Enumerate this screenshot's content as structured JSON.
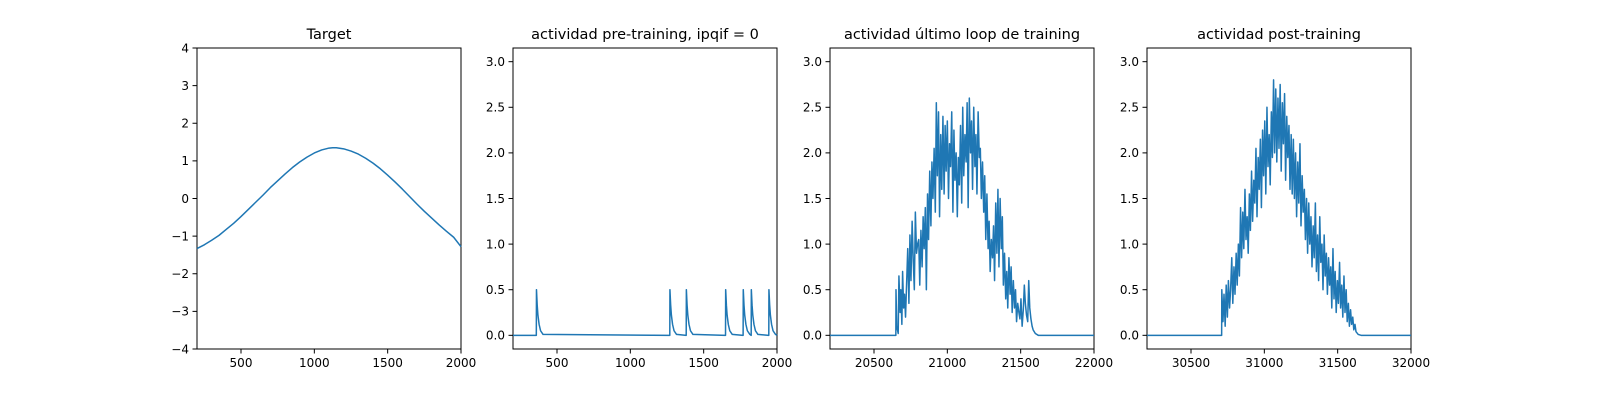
{
  "chart_data": [
    {
      "type": "line",
      "title": "Target",
      "xlabel": "",
      "ylabel": "",
      "xlim": [
        200,
        2000
      ],
      "ylim": [
        -4,
        4
      ],
      "xticks": [
        500,
        1000,
        1500,
        2000
      ],
      "yticks": [
        -4,
        -3,
        -2,
        -1,
        0,
        1,
        2,
        3,
        4
      ],
      "grid": false,
      "series": [
        {
          "color": "#1f77b4",
          "x": [
            200,
            250,
            300,
            350,
            400,
            450,
            500,
            550,
            600,
            650,
            700,
            750,
            800,
            850,
            900,
            950,
            1000,
            1050,
            1100,
            1125,
            1150,
            1200,
            1250,
            1300,
            1350,
            1400,
            1450,
            1500,
            1550,
            1600,
            1650,
            1700,
            1750,
            1800,
            1850,
            1900,
            1950,
            2000
          ],
          "y": [
            -1.33,
            -1.23,
            -1.11,
            -0.98,
            -0.82,
            -0.66,
            -0.48,
            -0.29,
            -0.1,
            0.09,
            0.29,
            0.47,
            0.65,
            0.82,
            0.97,
            1.1,
            1.21,
            1.29,
            1.34,
            1.35,
            1.35,
            1.32,
            1.26,
            1.18,
            1.07,
            0.94,
            0.79,
            0.62,
            0.44,
            0.25,
            0.05,
            -0.15,
            -0.34,
            -0.52,
            -0.7,
            -0.87,
            -1.03,
            -1.28
          ]
        }
      ]
    },
    {
      "type": "line",
      "title": "actividad pre-training, ipqif = 0",
      "xlabel": "",
      "ylabel": "",
      "xlim": [
        200,
        2000
      ],
      "ylim": [
        -0.15,
        3.15
      ],
      "xticks": [
        500,
        1000,
        1500,
        2000
      ],
      "yticks": [
        0.0,
        0.5,
        1.0,
        1.5,
        2.0,
        2.5,
        3.0
      ],
      "grid": false,
      "series": [
        {
          "color": "#1f77b4",
          "x": [
            200,
            359,
            360,
            365,
            370,
            378,
            388,
            405,
            1269,
            1270,
            1275,
            1280,
            1288,
            1298,
            1315,
            1381,
            1382,
            1387,
            1392,
            1400,
            1410,
            1427,
            1649,
            1650,
            1655,
            1660,
            1668,
            1678,
            1695,
            1769,
            1770,
            1775,
            1780,
            1788,
            1798,
            1815,
            1824,
            1825,
            1830,
            1835,
            1843,
            1853,
            1870,
            1944,
            1945,
            1950,
            1955,
            1963,
            1973,
            1990,
            2000
          ],
          "y": [
            0,
            0,
            0.5,
            0.33,
            0.22,
            0.12,
            0.05,
            0.01,
            0,
            0.5,
            0.33,
            0.22,
            0.12,
            0.05,
            0.01,
            0,
            0.5,
            0.33,
            0.22,
            0.12,
            0.05,
            0.01,
            0,
            0.5,
            0.33,
            0.22,
            0.12,
            0.05,
            0.01,
            0,
            0.5,
            0.33,
            0.22,
            0.12,
            0.05,
            0.01,
            0,
            0.5,
            0.33,
            0.22,
            0.12,
            0.05,
            0.01,
            0,
            0.5,
            0.33,
            0.22,
            0.12,
            0.05,
            0.01,
            0
          ]
        }
      ]
    },
    {
      "type": "line",
      "title": "actividad último loop de training",
      "xlabel": "",
      "ylabel": "",
      "xlim": [
        20200,
        22000
      ],
      "ylim": [
        -0.15,
        3.15
      ],
      "xticks": [
        20500,
        21000,
        21500,
        22000
      ],
      "yticks": [
        0.0,
        0.5,
        1.0,
        1.5,
        2.0,
        2.5,
        3.0
      ],
      "grid": false,
      "series": [
        {
          "color": "#1f77b4",
          "x": [
            20200,
            20649,
            20650,
            20655,
            20665,
            20670,
            20678,
            20683,
            20690,
            20695,
            20702,
            20708,
            20715,
            20722,
            20730,
            20738,
            20745,
            20752,
            20760,
            20768,
            20775,
            20782,
            20790,
            20797,
            20805,
            20812,
            20820,
            20828,
            20835,
            20842,
            20850,
            20857,
            20865,
            20872,
            20880,
            20888,
            20895,
            20902,
            20910,
            20918,
            20925,
            20932,
            20940,
            20947,
            20955,
            20962,
            20970,
            20978,
            20985,
            20992,
            21000,
            21008,
            21015,
            21022,
            21030,
            21038,
            21045,
            21052,
            21060,
            21068,
            21075,
            21082,
            21090,
            21098,
            21105,
            21112,
            21120,
            21128,
            21135,
            21142,
            21150,
            21158,
            21165,
            21172,
            21180,
            21188,
            21195,
            21202,
            21210,
            21218,
            21225,
            21232,
            21240,
            21248,
            21255,
            21262,
            21270,
            21278,
            21285,
            21292,
            21300,
            21308,
            21315,
            21322,
            21330,
            21338,
            21345,
            21352,
            21360,
            21368,
            21375,
            21382,
            21390,
            21398,
            21405,
            21412,
            21420,
            21428,
            21435,
            21442,
            21450,
            21458,
            21465,
            21472,
            21480,
            21488,
            21495,
            21502,
            21510,
            21518,
            21525,
            21532,
            21540,
            21548,
            21555,
            21562,
            21570,
            21578,
            21585,
            21600,
            21620,
            22000
          ],
          "y": [
            0,
            0,
            0.5,
            0.1,
            0.02,
            0.65,
            0.25,
            0.5,
            0.12,
            0.7,
            0.3,
            0.45,
            0.2,
            0.55,
            0.95,
            0.35,
            1.1,
            0.6,
            1.25,
            0.8,
            0.5,
            1.35,
            0.9,
            1.0,
            1.05,
            0.55,
            1.15,
            0.75,
            1.3,
            0.95,
            1.4,
            0.5,
            1.55,
            1.05,
            1.8,
            1.2,
            1.9,
            1.5,
            2.05,
            1.35,
            2.55,
            1.75,
            2.45,
            1.3,
            2.2,
            1.6,
            2.4,
            1.55,
            2.3,
            1.8,
            2.35,
            1.5,
            2.1,
            1.85,
            2.45,
            1.35,
            2.25,
            1.7,
            2.0,
            1.3,
            1.95,
            1.65,
            2.3,
            1.45,
            2.5,
            1.75,
            2.2,
            1.9,
            2.55,
            1.4,
            2.6,
            2.0,
            2.35,
            1.6,
            2.5,
            1.85,
            2.2,
            1.55,
            2.45,
            1.95,
            2.05,
            1.5,
            1.9,
            1.35,
            1.75,
            1.05,
            1.55,
            0.95,
            1.25,
            0.7,
            1.05,
            0.85,
            1.2,
            0.6,
            1.45,
            0.9,
            1.6,
            0.75,
            1.5,
            0.95,
            1.3,
            0.55,
            0.9,
            0.4,
            0.7,
            0.3,
            0.85,
            0.45,
            0.75,
            0.25,
            0.6,
            0.3,
            0.5,
            0.15,
            0.35,
            0.25,
            0.18,
            0.4,
            0.1,
            0.28,
            0.55,
            0.35,
            0.22,
            0.15,
            0.6,
            0.3,
            0.18,
            0.1,
            0.06,
            0.02,
            0.0,
            0
          ]
        }
      ]
    },
    {
      "type": "line",
      "title": "actividad post-training",
      "xlabel": "",
      "ylabel": "",
      "xlim": [
        30200,
        32000
      ],
      "ylim": [
        -0.15,
        3.15
      ],
      "xticks": [
        30500,
        31000,
        31500,
        32000
      ],
      "yticks": [
        0.0,
        0.5,
        1.0,
        1.5,
        2.0,
        2.5,
        3.0
      ],
      "grid": false,
      "series": [
        {
          "color": "#1f77b4",
          "x": [
            30200,
            30709,
            30710,
            30718,
            30725,
            30733,
            30740,
            30748,
            30755,
            30763,
            30770,
            30778,
            30785,
            30793,
            30800,
            30808,
            30815,
            30823,
            30830,
            30838,
            30845,
            30853,
            30860,
            30868,
            30875,
            30883,
            30890,
            30898,
            30905,
            30913,
            30920,
            30928,
            30935,
            30943,
            30950,
            30958,
            30965,
            30973,
            30980,
            30988,
            30995,
            31003,
            31010,
            31018,
            31025,
            31033,
            31040,
            31048,
            31055,
            31063,
            31070,
            31078,
            31085,
            31093,
            31100,
            31108,
            31115,
            31123,
            31130,
            31138,
            31145,
            31153,
            31160,
            31168,
            31175,
            31183,
            31190,
            31198,
            31205,
            31213,
            31220,
            31228,
            31235,
            31243,
            31250,
            31258,
            31265,
            31273,
            31280,
            31288,
            31295,
            31303,
            31310,
            31318,
            31325,
            31333,
            31340,
            31348,
            31355,
            31363,
            31370,
            31378,
            31385,
            31393,
            31400,
            31408,
            31415,
            31423,
            31430,
            31438,
            31445,
            31453,
            31460,
            31468,
            31475,
            31483,
            31490,
            31498,
            31505,
            31513,
            31520,
            31528,
            31535,
            31543,
            31550,
            31558,
            31565,
            31573,
            31580,
            31588,
            31595,
            31603,
            31610,
            31618,
            31625,
            31640,
            31660,
            32000
          ],
          "y": [
            0,
            0,
            0.5,
            0.15,
            0.45,
            0.1,
            0.55,
            0.2,
            0.6,
            0.3,
            0.5,
            0.85,
            0.35,
            0.75,
            0.45,
            0.9,
            0.55,
            1.0,
            0.65,
            1.4,
            0.85,
            1.35,
            0.95,
            1.6,
            1.05,
            1.3,
            0.9,
            1.55,
            1.15,
            1.8,
            1.25,
            1.7,
            1.45,
            2.05,
            1.3,
            1.95,
            1.6,
            2.15,
            1.4,
            2.25,
            1.75,
            2.35,
            1.55,
            2.5,
            1.85,
            2.2,
            1.65,
            2.45,
            1.95,
            2.8,
            2.0,
            2.7,
            1.9,
            2.6,
            2.05,
            2.75,
            1.8,
            2.55,
            2.1,
            2.65,
            1.7,
            2.4,
            1.95,
            2.3,
            1.6,
            2.2,
            1.55,
            2.15,
            1.5,
            2.0,
            1.3,
            1.9,
            1.45,
            2.1,
            1.2,
            1.75,
            1.35,
            1.6,
            1.05,
            1.5,
            0.9,
            1.45,
            1.0,
            1.3,
            0.75,
            1.2,
            0.85,
            1.45,
            0.7,
            1.1,
            0.6,
            1.3,
            0.8,
            1.0,
            0.5,
            1.1,
            0.65,
            0.9,
            0.45,
            0.85,
            0.55,
            0.75,
            0.3,
            0.95,
            0.4,
            0.7,
            0.25,
            0.6,
            0.35,
            0.8,
            0.3,
            0.55,
            0.2,
            0.65,
            0.25,
            0.5,
            0.15,
            0.35,
            0.1,
            0.28,
            0.12,
            0.2,
            0.06,
            0.12,
            0.04,
            0.01,
            0.0,
            0
          ]
        }
      ]
    }
  ]
}
